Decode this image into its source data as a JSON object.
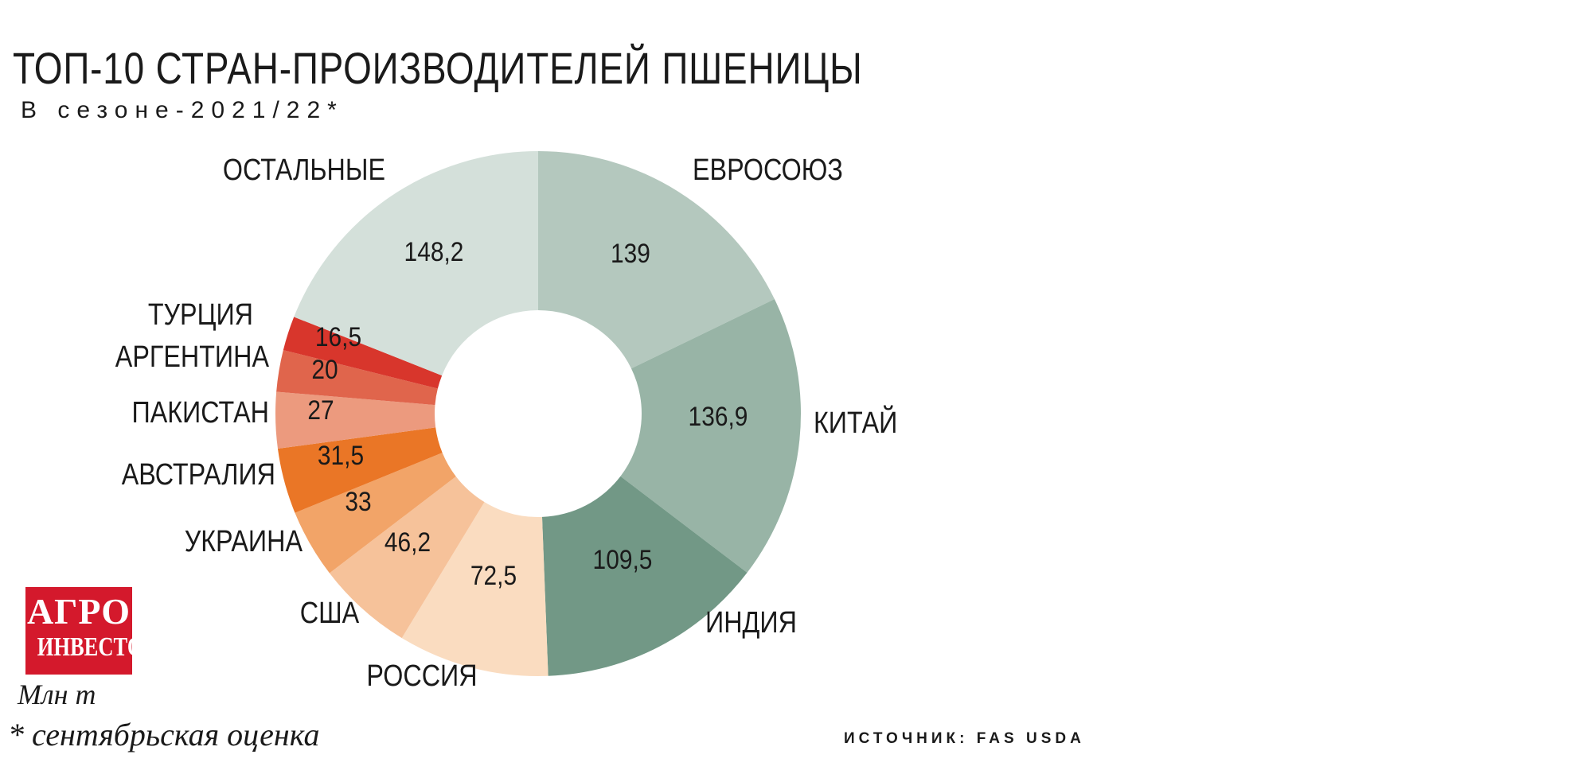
{
  "chart_data": {
    "type": "pie",
    "variant": "donut",
    "title": "ТОП-10 СТРАН-ПРОИЗВОДИТЕЛЕЙ ПШЕНИЦЫ",
    "subtitle": "В сезоне-2021/22*",
    "units": "Млн т",
    "footnote": "* сентябрьская оценка",
    "source": "ИСТОЧНИК: FAS USDA",
    "logo_text": [
      "АГРО",
      "ИНВЕСТОР"
    ],
    "slices": [
      {
        "label": "ЕВРОСОЮЗ",
        "value": 139,
        "value_label": "139",
        "color": "#b4c8be"
      },
      {
        "label": "КИТАЙ",
        "value": 136.9,
        "value_label": "136,9",
        "color": "#98b4a6"
      },
      {
        "label": "ИНДИЯ",
        "value": 109.5,
        "value_label": "109,5",
        "color": "#729886"
      },
      {
        "label": "РОССИЯ",
        "value": 72.5,
        "value_label": "72,5",
        "color": "#fadcc0"
      },
      {
        "label": "США",
        "value": 46.2,
        "value_label": "46,2",
        "color": "#f6c29a"
      },
      {
        "label": "УКРАИНА",
        "value": 33,
        "value_label": "33",
        "color": "#f2a468"
      },
      {
        "label": "АВСТРАЛИЯ",
        "value": 31.5,
        "value_label": "31,5",
        "color": "#ea7626"
      },
      {
        "label": "ПАКИСТАН",
        "value": 27,
        "value_label": "27",
        "color": "#ec9a7e"
      },
      {
        "label": "АРГЕНТИНА",
        "value": 20,
        "value_label": "20",
        "color": "#e0654c"
      },
      {
        "label": "ТУРЦИЯ",
        "value": 16.5,
        "value_label": "16,5",
        "color": "#d8362c"
      },
      {
        "label": "ОСТАЛЬНЫЕ",
        "value": 148.2,
        "value_label": "148,2",
        "color": "#d4e0da"
      }
    ]
  }
}
